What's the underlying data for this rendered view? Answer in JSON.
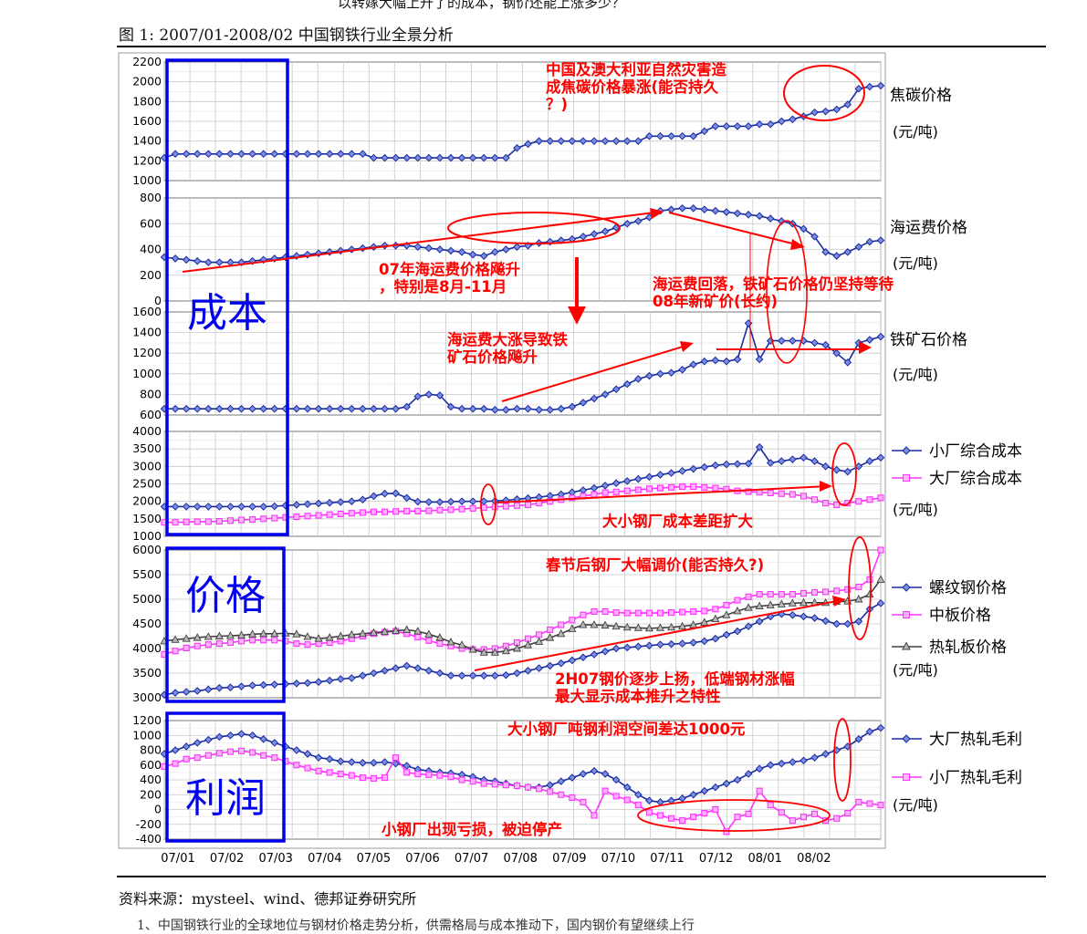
{
  "header": {
    "top_caption": "以转嫁大幅上升了的成本，钢价还能上涨多少？",
    "figure_title": "图 1:  2007/01-2008/02 中国钢铁行业全景分析",
    "source": "资料来源：mysteel、wind、德邦证券研究所",
    "bottom_cut": "1、中国钢铁行业的全球地位与钢材价格走势分析，供需格局与成本推动下，国内钢价有望继续上行"
  },
  "colors": {
    "series_blue": "#1a2aa0",
    "blue_marker": "#7b8fe0",
    "series_magenta": "#ff33ff",
    "series_gray": "#404040",
    "gray_marker": "#b8b8b8",
    "annotation_red": "#ff0000",
    "box_blue": "#0000ee",
    "grid": "#c8c8c8"
  },
  "chart_data": {
    "type": "line",
    "x_tick_labels": [
      "07/01",
      "07/02",
      "07/03",
      "07/04",
      "07/05",
      "07/06",
      "07/07",
      "07/08",
      "07/09",
      "07/10",
      "07/11",
      "07/12",
      "08/01",
      "08/02"
    ],
    "points_per_series": 66,
    "block_labels": [
      "成本",
      "价格",
      "利润"
    ],
    "panels": [
      {
        "ylim": [
          1000,
          2200
        ],
        "yticks": [
          1000,
          1200,
          1400,
          1600,
          1800,
          2000,
          2200
        ],
        "series": [
          {
            "name": "焦碳价格",
            "color": "blue",
            "values": [
              1230,
              1270,
              1270,
              1270,
              1270,
              1270,
              1270,
              1270,
              1270,
              1270,
              1270,
              1270,
              1270,
              1270,
              1270,
              1270,
              1270,
              1270,
              1270,
              1230,
              1230,
              1230,
              1230,
              1230,
              1230,
              1230,
              1230,
              1230,
              1230,
              1230,
              1230,
              1230,
              1330,
              1370,
              1400,
              1400,
              1400,
              1400,
              1400,
              1400,
              1400,
              1400,
              1400,
              1400,
              1450,
              1450,
              1450,
              1450,
              1450,
              1500,
              1550,
              1550,
              1550,
              1550,
              1570,
              1570,
              1600,
              1620,
              1650,
              1690,
              1700,
              1720,
              1770,
              1930,
              1950,
              1960
            ]
          }
        ],
        "unit": "(元/吨)",
        "annotations": [
          {
            "text": "中国及澳大利亚自然灾害造成焦碳价格暴涨(能否持久？)"
          }
        ]
      },
      {
        "ylim": [
          0,
          800
        ],
        "yticks": [
          0,
          200,
          400,
          600,
          800
        ],
        "series": [
          {
            "name": "海运费价格",
            "color": "blue",
            "values": [
              340,
              330,
              320,
              310,
              300,
              300,
              300,
              300,
              310,
              320,
              330,
              340,
              350,
              360,
              370,
              380,
              390,
              400,
              410,
              420,
              430,
              430,
              430,
              420,
              410,
              400,
              390,
              380,
              360,
              350,
              380,
              400,
              420,
              430,
              450,
              460,
              470,
              480,
              500,
              520,
              540,
              570,
              600,
              620,
              650,
              700,
              710,
              720,
              720,
              710,
              700,
              690,
              680,
              670,
              660,
              640,
              620,
              600,
              560,
              500,
              380,
              350,
              380,
              420,
              460,
              470
            ]
          }
        ],
        "unit": "(元/吨)",
        "annotations": [
          {
            "text": "07年海运费价格飚升，特别是8月-11月"
          },
          {
            "text": "海运费回落，铁矿石价格仍坚持等待08年新矿价(长约)"
          }
        ]
      },
      {
        "ylim": [
          600,
          1600
        ],
        "yticks": [
          600,
          800,
          1000,
          1200,
          1400,
          1600
        ],
        "series": [
          {
            "name": "铁矿石价格",
            "color": "blue",
            "values": [
              660,
              660,
              660,
              660,
              660,
              660,
              660,
              660,
              660,
              660,
              660,
              660,
              660,
              660,
              660,
              660,
              660,
              660,
              660,
              660,
              660,
              660,
              680,
              780,
              800,
              790,
              680,
              660,
              660,
              660,
              650,
              650,
              660,
              660,
              650,
              650,
              660,
              680,
              720,
              760,
              800,
              850,
              900,
              950,
              980,
              1000,
              1010,
              1040,
              1090,
              1120,
              1130,
              1120,
              1140,
              1490,
              1140,
              1320,
              1320,
              1320,
              1320,
              1300,
              1280,
              1200,
              1110,
              1300,
              1330,
              1360
            ]
          }
        ],
        "unit": "(元/吨)",
        "annotations": [
          {
            "text": "海运费大涨导致铁矿石价格飚升"
          }
        ]
      },
      {
        "ylim": [
          1000,
          4000
        ],
        "yticks": [
          1000,
          1500,
          2000,
          2500,
          3000,
          3500,
          4000
        ],
        "series": [
          {
            "name": "小厂综合成本",
            "color": "blue",
            "values": [
              1850,
              1850,
              1850,
              1850,
              1850,
              1850,
              1850,
              1850,
              1850,
              1850,
              1860,
              1880,
              1900,
              1920,
              1940,
              1960,
              1980,
              2000,
              2050,
              2150,
              2220,
              2230,
              2100,
              1990,
              1980,
              1980,
              1990,
              2000,
              2000,
              2000,
              2010,
              2030,
              2060,
              2090,
              2120,
              2160,
              2200,
              2260,
              2320,
              2380,
              2450,
              2520,
              2580,
              2640,
              2700,
              2760,
              2810,
              2870,
              2930,
              2980,
              3030,
              3060,
              3070,
              3080,
              3550,
              3100,
              3150,
              3200,
              3250,
              3150,
              3000,
              2900,
              2850,
              3000,
              3150,
              3250
            ]
          },
          {
            "name": "大厂综合成本",
            "color": "magenta",
            "values": [
              1400,
              1400,
              1410,
              1420,
              1420,
              1430,
              1450,
              1470,
              1480,
              1500,
              1520,
              1540,
              1560,
              1580,
              1600,
              1620,
              1640,
              1660,
              1680,
              1700,
              1700,
              1710,
              1720,
              1720,
              1730,
              1750,
              1760,
              1780,
              1800,
              1820,
              1840,
              1860,
              1880,
              1900,
              1950,
              2000,
              2050,
              2100,
              2150,
              2200,
              2250,
              2270,
              2300,
              2330,
              2360,
              2380,
              2400,
              2420,
              2420,
              2400,
              2380,
              2350,
              2300,
              2280,
              2260,
              2240,
              2220,
              2200,
              2150,
              2050,
              1950,
              1900,
              1950,
              2000,
              2050,
              2100
            ]
          }
        ],
        "unit": "(元/吨)",
        "annotations": [
          {
            "text": "大小钢厂成本差距扩大"
          }
        ]
      },
      {
        "ylim": [
          3000,
          6000
        ],
        "yticks": [
          3000,
          3500,
          4000,
          4500,
          5000,
          5500,
          6000
        ],
        "series": [
          {
            "name": "螺纹钢价格",
            "color": "blue",
            "values": [
              3060,
              3100,
              3120,
              3140,
              3170,
              3200,
              3210,
              3230,
              3250,
              3260,
              3270,
              3280,
              3290,
              3300,
              3320,
              3350,
              3380,
              3400,
              3450,
              3500,
              3550,
              3600,
              3650,
              3600,
              3550,
              3500,
              3450,
              3450,
              3450,
              3450,
              3450,
              3460,
              3500,
              3550,
              3600,
              3650,
              3700,
              3760,
              3820,
              3880,
              3940,
              4000,
              4020,
              4040,
              4060,
              4080,
              4090,
              4100,
              4120,
              4150,
              4200,
              4280,
              4350,
              4450,
              4550,
              4650,
              4700,
              4680,
              4650,
              4620,
              4560,
              4500,
              4500,
              4550,
              4800,
              4920
            ]
          },
          {
            "name": "中板价格",
            "color": "magenta",
            "values": [
              3880,
              3950,
              4010,
              4050,
              4080,
              4100,
              4120,
              4150,
              4170,
              4170,
              4170,
              4150,
              4100,
              4080,
              4100,
              4120,
              4150,
              4200,
              4250,
              4300,
              4330,
              4350,
              4300,
              4230,
              4160,
              4100,
              4050,
              4000,
              3980,
              3980,
              4000,
              4050,
              4120,
              4200,
              4280,
              4380,
              4480,
              4580,
              4680,
              4750,
              4750,
              4730,
              4720,
              4720,
              4720,
              4720,
              4730,
              4740,
              4750,
              4760,
              4800,
              4880,
              4980,
              5050,
              5100,
              5100,
              5100,
              5100,
              5120,
              5140,
              5150,
              5170,
              5200,
              5250,
              5400,
              6000
            ]
          },
          {
            "name": "热轧板价格",
            "color": "gray",
            "values": [
              4150,
              4180,
              4200,
              4220,
              4240,
              4250,
              4260,
              4270,
              4290,
              4300,
              4300,
              4310,
              4290,
              4240,
              4200,
              4220,
              4250,
              4280,
              4300,
              4320,
              4340,
              4360,
              4380,
              4350,
              4290,
              4220,
              4130,
              4070,
              3980,
              3920,
              3920,
              3950,
              4000,
              4070,
              4140,
              4220,
              4300,
              4400,
              4480,
              4480,
              4470,
              4450,
              4430,
              4420,
              4410,
              4420,
              4430,
              4450,
              4480,
              4530,
              4600,
              4680,
              4760,
              4830,
              4860,
              4880,
              4900,
              4920,
              4930,
              4930,
              4930,
              4950,
              4960,
              5000,
              5100,
              5400
            ]
          }
        ],
        "unit": "(元/吨)",
        "annotations": [
          {
            "text": "春节后钢厂大幅调价(能否持久?)"
          },
          {
            "text": "2H07钢价逐步上扬，低端钢材涨幅最大显示成本推升之特性"
          }
        ]
      },
      {
        "ylim": [
          -400,
          1200
        ],
        "yticks": [
          -400,
          -200,
          0,
          200,
          400,
          600,
          800,
          1000,
          1200
        ],
        "series": [
          {
            "name": "大厂热轧毛利",
            "color": "blue",
            "values": [
              750,
              800,
              850,
              900,
              940,
              980,
              1000,
              1020,
              1000,
              950,
              900,
              850,
              800,
              750,
              700,
              680,
              650,
              640,
              630,
              630,
              640,
              620,
              590,
              540,
              520,
              500,
              490,
              470,
              440,
              400,
              380,
              350,
              320,
              300,
              300,
              330,
              380,
              430,
              480,
              520,
              480,
              400,
              300,
              200,
              120,
              100,
              120,
              150,
              200,
              250,
              300,
              350,
              400,
              480,
              550,
              600,
              620,
              640,
              660,
              700,
              750,
              800,
              850,
              950,
              1050,
              1100
            ]
          },
          {
            "name": "小厂热轧毛利",
            "color": "magenta",
            "values": [
              580,
              620,
              680,
              700,
              730,
              760,
              780,
              790,
              770,
              730,
              700,
              650,
              600,
              560,
              520,
              500,
              480,
              460,
              430,
              420,
              430,
              700,
              500,
              480,
              470,
              460,
              440,
              400,
              380,
              350,
              340,
              330,
              320,
              300,
              280,
              240,
              200,
              160,
              100,
              -80,
              250,
              180,
              130,
              60,
              -40,
              -80,
              -120,
              -150,
              -100,
              -50,
              0,
              -300,
              -100,
              -60,
              250,
              60,
              -40,
              -150,
              -100,
              -60,
              -150,
              -120,
              -50,
              100,
              80,
              60
            ]
          }
        ],
        "unit": "(元/吨)",
        "annotations": [
          {
            "text": "大小钢厂吨钢利润空间差达1000元"
          },
          {
            "text": "小钢厂出现亏损，被迫停产"
          }
        ]
      }
    ]
  }
}
